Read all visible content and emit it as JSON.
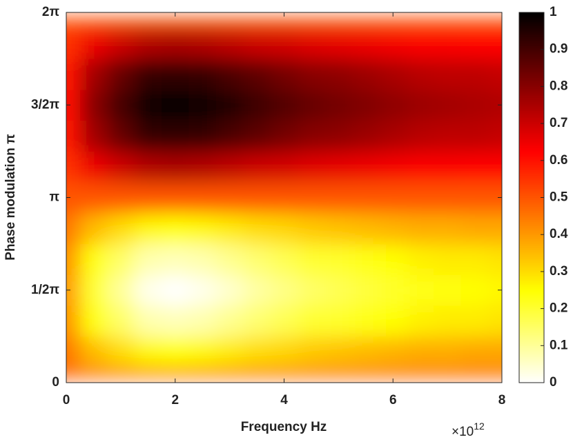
{
  "chart_data": {
    "type": "heatmap",
    "xlabel": "Frequency Hz",
    "ylabel": "Phase modulation π",
    "x_multiplier_base": "×10",
    "x_multiplier_exponent": "12",
    "colormap": "hot-reversed",
    "x": [
      0,
      0.5,
      1,
      1.5,
      2,
      2.5,
      3,
      3.5,
      4,
      4.5,
      5,
      5.5,
      6,
      6.5,
      7,
      7.5,
      8
    ],
    "y": [
      0,
      0.5236,
      1.0472,
      1.5708,
      2.0944,
      2.618,
      3.1416,
      3.6652,
      4.1888,
      4.7124,
      5.236,
      5.7596,
      6.2832
    ],
    "z": [
      [
        0.5,
        0.5,
        0.5,
        0.5,
        0.5,
        0.5,
        0.5,
        0.5,
        0.5,
        0.5,
        0.5,
        0.5,
        0.5,
        0.5,
        0.5,
        0.5,
        0.5
      ],
      [
        0.45,
        0.35,
        0.3,
        0.26,
        0.25,
        0.26,
        0.28,
        0.3,
        0.31,
        0.33,
        0.34,
        0.35,
        0.36,
        0.37,
        0.37,
        0.38,
        0.38
      ],
      [
        0.41,
        0.24,
        0.15,
        0.08,
        0.07,
        0.08,
        0.11,
        0.14,
        0.17,
        0.2,
        0.21,
        0.23,
        0.25,
        0.27,
        0.28,
        0.28,
        0.29
      ],
      [
        0.4,
        0.2,
        0.1,
        0.02,
        0,
        0.02,
        0.05,
        0.09,
        0.12,
        0.15,
        0.17,
        0.19,
        0.21,
        0.23,
        0.24,
        0.25,
        0.26
      ],
      [
        0.41,
        0.24,
        0.15,
        0.08,
        0.07,
        0.08,
        0.11,
        0.14,
        0.17,
        0.2,
        0.21,
        0.23,
        0.25,
        0.27,
        0.28,
        0.28,
        0.29
      ],
      [
        0.45,
        0.35,
        0.3,
        0.26,
        0.25,
        0.26,
        0.28,
        0.3,
        0.31,
        0.33,
        0.34,
        0.35,
        0.36,
        0.37,
        0.37,
        0.38,
        0.38
      ],
      [
        0.5,
        0.5,
        0.5,
        0.5,
        0.5,
        0.5,
        0.5,
        0.5,
        0.5,
        0.5,
        0.5,
        0.5,
        0.5,
        0.5,
        0.5,
        0.5,
        0.5
      ],
      [
        0.55,
        0.65,
        0.7,
        0.74,
        0.75,
        0.74,
        0.72,
        0.7,
        0.69,
        0.67,
        0.66,
        0.65,
        0.64,
        0.63,
        0.63,
        0.62,
        0.62
      ],
      [
        0.59,
        0.76,
        0.85,
        0.92,
        0.93,
        0.92,
        0.89,
        0.86,
        0.83,
        0.8,
        0.79,
        0.77,
        0.75,
        0.73,
        0.72,
        0.72,
        0.71
      ],
      [
        0.6,
        0.8,
        0.9,
        0.98,
        1,
        0.98,
        0.95,
        0.91,
        0.88,
        0.85,
        0.83,
        0.81,
        0.79,
        0.77,
        0.76,
        0.75,
        0.74
      ],
      [
        0.59,
        0.76,
        0.85,
        0.92,
        0.93,
        0.92,
        0.89,
        0.86,
        0.83,
        0.8,
        0.79,
        0.77,
        0.75,
        0.73,
        0.72,
        0.72,
        0.71
      ],
      [
        0.55,
        0.65,
        0.7,
        0.74,
        0.75,
        0.74,
        0.72,
        0.7,
        0.69,
        0.67,
        0.66,
        0.65,
        0.64,
        0.63,
        0.63,
        0.62,
        0.62
      ],
      [
        0.5,
        0.5,
        0.5,
        0.5,
        0.5,
        0.5,
        0.5,
        0.5,
        0.5,
        0.5,
        0.5,
        0.5,
        0.5,
        0.5,
        0.5,
        0.5,
        0.5
      ]
    ],
    "xlim": [
      0,
      8
    ],
    "xticks": [
      0,
      2,
      4,
      6,
      8
    ],
    "ylim": [
      0,
      6.2832
    ],
    "yticks": [
      0,
      {
        "value": 1.5708,
        "label": "1/2π"
      },
      {
        "value": 3.1416,
        "label": "π"
      },
      {
        "value": 4.7124,
        "label": "3/2π"
      },
      {
        "value": 6.2832,
        "label": "2π"
      }
    ],
    "clim": [
      0,
      1
    ],
    "cticks": [
      0,
      0.1,
      0.2,
      0.3,
      0.4,
      0.5,
      0.6,
      0.7,
      0.8,
      0.9,
      1
    ]
  }
}
